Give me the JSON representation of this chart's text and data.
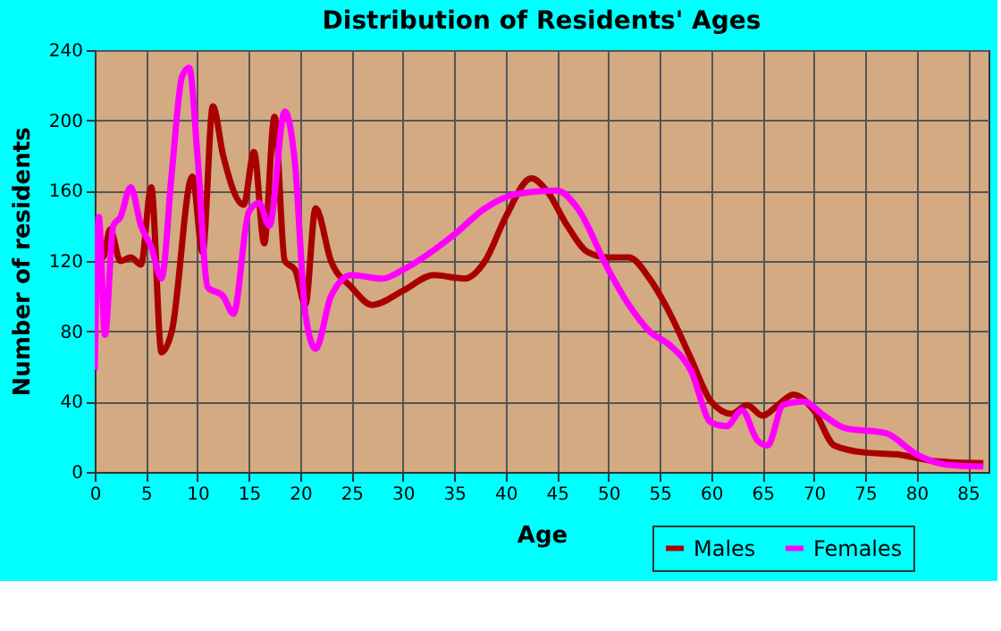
{
  "chart_data": {
    "type": "line",
    "title": "Distribution of Residents' Ages",
    "xlabel": "Age",
    "ylabel": "Number of residents",
    "xlim": [
      0,
      87
    ],
    "xticks": [
      0,
      5,
      10,
      15,
      20,
      25,
      30,
      35,
      40,
      45,
      50,
      55,
      60,
      65,
      70,
      75,
      80,
      85
    ],
    "ylim": [
      0,
      240
    ],
    "yticks": [
      0,
      40,
      80,
      120,
      160,
      200,
      240
    ],
    "grid": true,
    "legend": "bottom right",
    "series": [
      {
        "name": "Males",
        "color": "#aa0000",
        "x": [
          0,
          0.3,
          0.8,
          1.5,
          2.5,
          3.5,
          4.5,
          5.5,
          6.5,
          7.5,
          9.5,
          10.5,
          11.5,
          12.5,
          14.5,
          15.5,
          16.5,
          17.5,
          18.5,
          19.5,
          20.5,
          21.5,
          23,
          25,
          27,
          30,
          33,
          36,
          38,
          40,
          42.5,
          44,
          46,
          48,
          50,
          52,
          54,
          56,
          58,
          60,
          62,
          63.5,
          65,
          66.5,
          68,
          70,
          72,
          75,
          78,
          82,
          86.5
        ],
        "values": [
          120,
          138,
          122,
          138,
          120,
          122,
          118,
          162,
          68,
          80,
          168,
          125,
          208,
          180,
          152,
          182,
          130,
          202,
          120,
          115,
          95,
          150,
          120,
          105,
          95,
          103,
          112,
          110,
          120,
          145,
          167,
          160,
          140,
          125,
          122,
          122,
          110,
          90,
          65,
          40,
          33,
          38,
          32,
          38,
          44,
          35,
          15,
          11,
          10,
          6,
          5
        ]
      },
      {
        "name": "Females",
        "color": "#ff00ff",
        "x": [
          0,
          0.4,
          1,
          1.8,
          2.5,
          3.5,
          4.5,
          5.5,
          6.5,
          7.5,
          8.5,
          9.2,
          10,
          11,
          12.5,
          13.5,
          15,
          16,
          17,
          18.5,
          19.5,
          20.5,
          21.5,
          23,
          25,
          28,
          30,
          35,
          38,
          41,
          45,
          47,
          50,
          52,
          54,
          56,
          58,
          60,
          61.5,
          63,
          64.5,
          65.5,
          67,
          69,
          71,
          73,
          77,
          80,
          83,
          86.5
        ],
        "values": [
          58,
          145,
          78,
          140,
          145,
          162,
          140,
          128,
          110,
          170,
          225,
          230,
          180,
          105,
          100,
          90,
          148,
          153,
          140,
          205,
          175,
          90,
          70,
          100,
          112,
          110,
          115,
          135,
          150,
          158,
          160,
          150,
          115,
          95,
          80,
          72,
          58,
          28,
          26,
          35,
          18,
          15,
          38,
          40,
          32,
          25,
          22,
          10,
          4,
          3
        ]
      }
    ]
  }
}
